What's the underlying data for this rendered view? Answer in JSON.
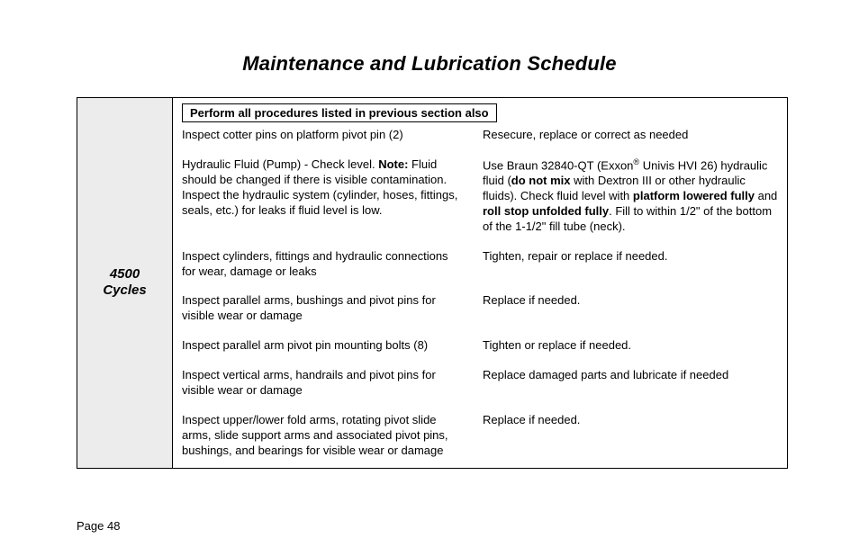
{
  "title": "Maintenance and Lubrication Schedule",
  "footer": "Page 48",
  "cycle": {
    "count": "4500",
    "word": "Cycles"
  },
  "notice": "Perform all procedures listed in previous section also",
  "rows": [
    {
      "a": "Inspect cotter pins on platform pivot pin (2)",
      "b": "Resecure, replace or correct as needed"
    },
    {
      "a_html": "Hydraulic Fluid (Pump) - Check level.  <b>Note:</b>  Fluid should be changed if there is visible contamination.  Inspect the hydraulic system (cylinder, hoses, fittings, seals, etc.) for leaks if fluid level is low.",
      "b_html": "Use Braun 32840-QT (Exxon<sup>®</sup> Univis HVI 26) hydraulic fluid (<b>do not mix</b> with Dextron III or other hydraulic fluids).  Check fluid level with <b>platform lowered fully</b> and <b>roll stop unfolded fully</b>.  Fill to within 1/2\" of the bottom of the 1-1/2\" fill tube (neck)."
    },
    {
      "a": "Inspect cylinders, fittings and hydraulic connections for wear, damage or leaks",
      "b": "Tighten, repair or replace if needed."
    },
    {
      "a": "Inspect parallel arms, bushings and pivot pins for visible wear or damage",
      "b": "Replace if needed."
    },
    {
      "a": "Inspect parallel arm pivot pin mounting bolts (8)",
      "b": "Tighten or replace if needed."
    },
    {
      "a": "Inspect vertical arms, handrails and pivot pins for visible wear or damage",
      "b": "Replace damaged parts and lubricate if needed"
    },
    {
      "a": "Inspect upper/lower fold arms, rotating pivot slide arms, slide support arms and associated pivot pins, bushings, and bearings for visible wear or damage",
      "b": "Replace if needed."
    }
  ]
}
